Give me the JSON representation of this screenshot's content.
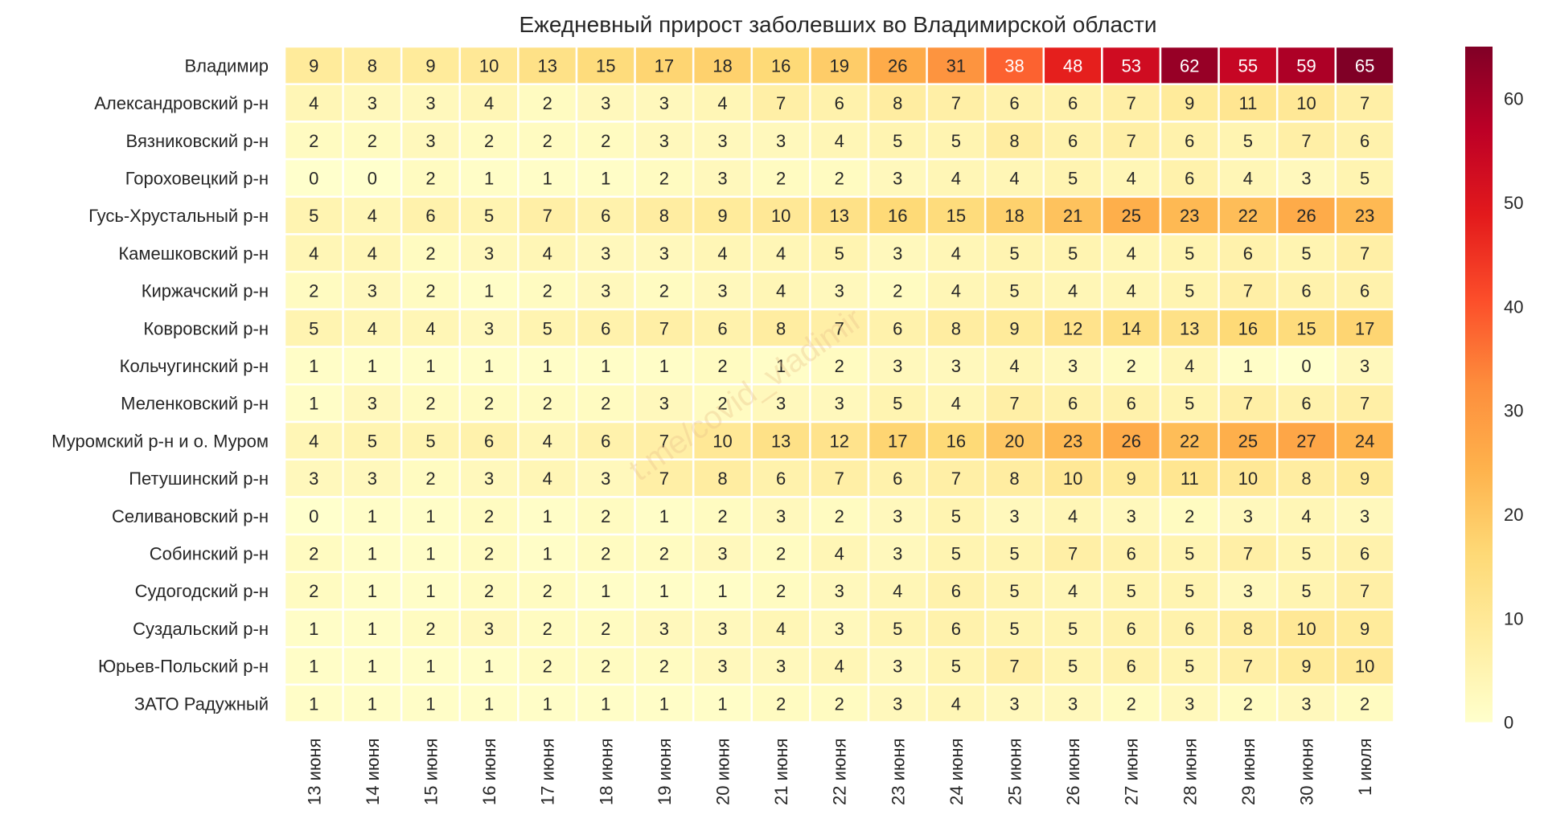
{
  "chart_data": {
    "type": "heatmap",
    "title": "Ежедневный прирост заболевших во Владимирской области",
    "watermark": "t.me/covid_vladimir",
    "x": [
      "13 июня",
      "14 июня",
      "15 июня",
      "16 июня",
      "17 июня",
      "18 июня",
      "19 июня",
      "20 июня",
      "21 июня",
      "22 июня",
      "23 июня",
      "24 июня",
      "25 июня",
      "26 июня",
      "27 июня",
      "28 июня",
      "29 июня",
      "30 июня",
      "1 июля"
    ],
    "y": [
      "Владимир",
      "Александровский р-н",
      "Вязниковский р-н",
      "Гороховецкий р-н",
      "Гусь-Хрустальный р-н",
      "Камешковский р-н",
      "Киржачский р-н",
      "Ковровский р-н",
      "Кольчугинский р-н",
      "Меленковский р-н",
      "Муромский р-н и о. Муром",
      "Петушинский р-н",
      "Селивановский р-н",
      "Собинский р-н",
      "Судогодский р-н",
      "Суздальский р-н",
      "Юрьев-Польский р-н",
      "ЗАТО Радужный"
    ],
    "values": [
      [
        9,
        8,
        9,
        10,
        13,
        15,
        17,
        18,
        16,
        19,
        26,
        31,
        38,
        48,
        53,
        62,
        55,
        59,
        65
      ],
      [
        4,
        3,
        3,
        4,
        2,
        3,
        3,
        4,
        7,
        6,
        8,
        7,
        6,
        6,
        7,
        9,
        11,
        10,
        7
      ],
      [
        2,
        2,
        3,
        2,
        2,
        2,
        3,
        3,
        3,
        4,
        5,
        5,
        8,
        6,
        7,
        6,
        5,
        7,
        6
      ],
      [
        0,
        0,
        2,
        1,
        1,
        1,
        2,
        3,
        2,
        2,
        3,
        4,
        4,
        5,
        4,
        6,
        4,
        3,
        5
      ],
      [
        5,
        4,
        6,
        5,
        7,
        6,
        8,
        9,
        10,
        13,
        16,
        15,
        18,
        21,
        25,
        23,
        22,
        26,
        23
      ],
      [
        4,
        4,
        2,
        3,
        4,
        3,
        3,
        4,
        4,
        5,
        3,
        4,
        5,
        5,
        4,
        5,
        6,
        5,
        7
      ],
      [
        2,
        3,
        2,
        1,
        2,
        3,
        2,
        3,
        4,
        3,
        2,
        4,
        5,
        4,
        4,
        5,
        7,
        6,
        6
      ],
      [
        5,
        4,
        4,
        3,
        5,
        6,
        7,
        6,
        8,
        7,
        6,
        8,
        9,
        12,
        14,
        13,
        16,
        15,
        17
      ],
      [
        1,
        1,
        1,
        1,
        1,
        1,
        1,
        2,
        1,
        2,
        3,
        3,
        4,
        3,
        2,
        4,
        1,
        0,
        3
      ],
      [
        1,
        3,
        2,
        2,
        2,
        2,
        3,
        2,
        3,
        3,
        5,
        4,
        7,
        6,
        6,
        5,
        7,
        6,
        7
      ],
      [
        4,
        5,
        5,
        6,
        4,
        6,
        7,
        10,
        13,
        12,
        17,
        16,
        20,
        23,
        26,
        22,
        25,
        27,
        24
      ],
      [
        3,
        3,
        2,
        3,
        4,
        3,
        7,
        8,
        6,
        7,
        6,
        7,
        8,
        10,
        9,
        11,
        10,
        8,
        9
      ],
      [
        0,
        1,
        1,
        2,
        1,
        2,
        1,
        2,
        3,
        2,
        3,
        5,
        3,
        4,
        3,
        2,
        3,
        4,
        3
      ],
      [
        2,
        1,
        1,
        2,
        1,
        2,
        2,
        3,
        2,
        4,
        3,
        5,
        5,
        7,
        6,
        5,
        7,
        5,
        6
      ],
      [
        2,
        1,
        1,
        2,
        2,
        1,
        1,
        1,
        2,
        3,
        4,
        6,
        5,
        4,
        5,
        5,
        3,
        5,
        7
      ],
      [
        1,
        1,
        2,
        3,
        2,
        2,
        3,
        3,
        4,
        3,
        5,
        6,
        5,
        5,
        6,
        6,
        8,
        10,
        9
      ],
      [
        1,
        1,
        1,
        1,
        2,
        2,
        2,
        3,
        3,
        4,
        3,
        5,
        7,
        5,
        6,
        5,
        7,
        9,
        10
      ],
      [
        1,
        1,
        1,
        1,
        1,
        1,
        1,
        1,
        2,
        2,
        3,
        4,
        3,
        3,
        2,
        3,
        2,
        3,
        2
      ]
    ],
    "vmin": 0,
    "vmax": 65,
    "colorbar_ticks": [
      0,
      10,
      20,
      30,
      40,
      50,
      60
    ],
    "colormap": [
      "#ffffcc",
      "#ffeda0",
      "#fed976",
      "#feb24c",
      "#fd8d3c",
      "#fc4e2a",
      "#e31a1c",
      "#bd0026",
      "#800026"
    ],
    "text_dark_color": "#262626",
    "text_light_color": "#ffffff",
    "grid_color": "#ffffff"
  }
}
